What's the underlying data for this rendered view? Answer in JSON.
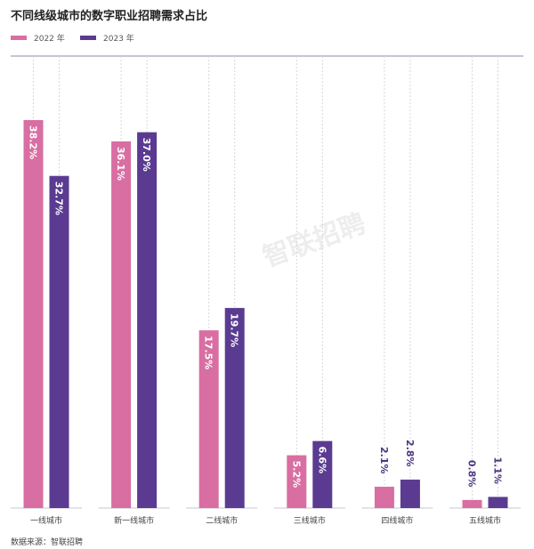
{
  "chart_data": {
    "type": "bar",
    "title": "不同线级城市的数字职业招聘需求占比",
    "categories": [
      "一线城市",
      "新一线城市",
      "二线城市",
      "三线城市",
      "四线城市",
      "五线城市"
    ],
    "series": [
      {
        "name": "2022 年",
        "color": "#d86ea2",
        "values": [
          38.2,
          36.1,
          17.5,
          5.2,
          2.1,
          0.8
        ],
        "labels": [
          "38.2%",
          "36.1%",
          "17.5%",
          "5.2%",
          "2.1%",
          "0.8%"
        ]
      },
      {
        "name": "2023 年",
        "color": "#5a3b91",
        "values": [
          32.7,
          37.0,
          19.7,
          6.6,
          2.8,
          1.1
        ],
        "labels": [
          "32.7%",
          "37.0%",
          "19.7%",
          "6.6%",
          "2.8%",
          "1.1%"
        ]
      }
    ],
    "ylim": [
      0,
      44.5
    ],
    "legend": "top-left",
    "grid": "dashed vertical guides",
    "source": "数据来源：智联招聘"
  },
  "watermark": "智联招聘"
}
